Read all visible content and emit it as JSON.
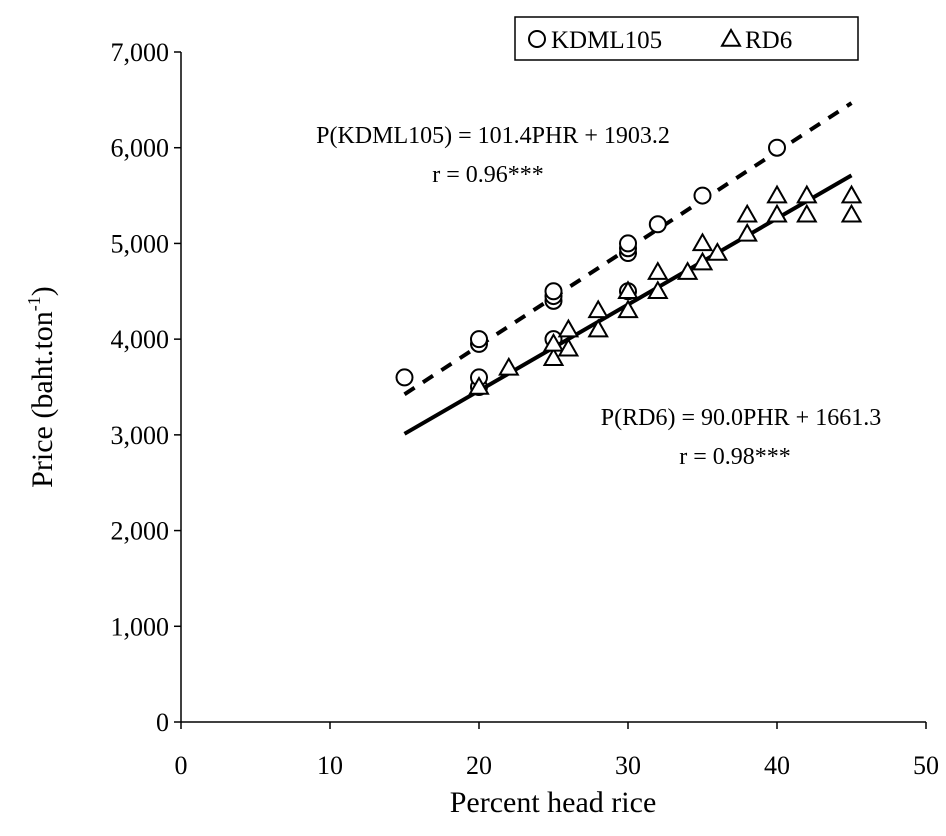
{
  "chart_data": {
    "type": "scatter",
    "x_label": "Percent head rice",
    "y_label": [
      "Price (baht.ton",
      "-1",
      ")"
    ],
    "xlim": [
      0,
      50
    ],
    "xticks": [
      0,
      10,
      20,
      30,
      40,
      50
    ],
    "ylim": [
      0,
      7000
    ],
    "yticks": [
      0,
      {
        "value": 1000,
        "label": "1,000"
      },
      {
        "value": 2000,
        "label": "2,000"
      },
      {
        "value": 3000,
        "label": "3,000"
      },
      {
        "value": 4000,
        "label": "4,000"
      },
      {
        "value": 5000,
        "label": "5,000"
      },
      {
        "value": 6000,
        "label": "6,000"
      },
      {
        "value": 7000,
        "label": "7,000"
      }
    ],
    "legend": "top-right",
    "series": [
      {
        "name": "KDML105",
        "marker": "circle",
        "color": "#000000",
        "x": [
          15,
          20,
          20,
          20,
          20,
          25,
          25,
          25,
          25,
          30,
          30,
          30,
          30,
          32,
          35,
          40
        ],
        "values": [
          3600,
          3500,
          3600,
          3950,
          4000,
          4000,
          4400,
          4450,
          4500,
          4500,
          4900,
          4950,
          5000,
          5200,
          5500,
          6000
        ],
        "trendline": {
          "style": "dashed",
          "x": [
            15,
            45
          ],
          "values": [
            3424,
            6466
          ]
        }
      },
      {
        "name": "RD6",
        "marker": "triangle",
        "color": "#000000",
        "x": [
          20,
          22,
          25,
          25,
          26,
          26,
          28,
          28,
          30,
          30,
          32,
          32,
          34,
          35,
          35,
          36,
          38,
          38,
          40,
          40,
          42,
          42,
          45,
          45
        ],
        "values": [
          3500,
          3700,
          3800,
          3950,
          3900,
          4100,
          4100,
          4300,
          4300,
          4500,
          4500,
          4700,
          4700,
          4800,
          5000,
          4900,
          5100,
          5300,
          5300,
          5500,
          5300,
          5500,
          5300,
          5500
        ],
        "trendline": {
          "style": "solid",
          "x": [
            15,
            45
          ],
          "values": [
            3011,
            5711
          ]
        }
      }
    ],
    "annotations": [
      "P(KDML105) = 101.4PHR + 1903.2",
      "r = 0.96***",
      "P(RD6) = 90.0PHR + 1661.3",
      "r = 0.98***"
    ]
  }
}
